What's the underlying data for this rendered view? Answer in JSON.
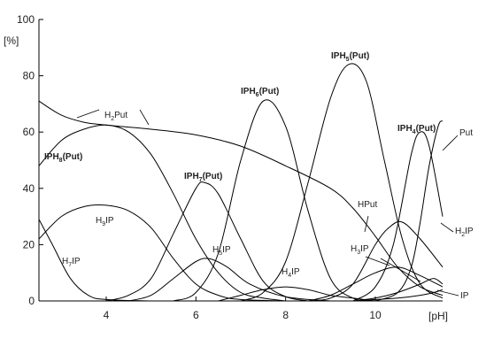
{
  "chart_data": {
    "type": "line",
    "ylabel": "[%]",
    "xlabel": "[pH]",
    "xlim": [
      2.5,
      11.5
    ],
    "ylim": [
      0,
      100
    ],
    "x_ticks": [
      4,
      6,
      8,
      10
    ],
    "y_ticks": [
      0,
      20,
      40,
      60,
      80,
      100
    ],
    "grid": false,
    "series": [
      {
        "name": "H2Put",
        "points": [
          [
            2.5,
            71
          ],
          [
            3,
            66
          ],
          [
            3.5,
            63.5
          ],
          [
            4,
            62.5
          ],
          [
            5,
            61
          ],
          [
            6,
            59
          ],
          [
            7,
            55
          ],
          [
            8,
            48
          ],
          [
            9,
            40
          ],
          [
            9.5,
            33
          ],
          [
            10,
            23
          ],
          [
            10.5,
            12
          ],
          [
            11,
            5
          ],
          [
            11.5,
            2
          ]
        ]
      },
      {
        "name": "IPH8(Put)",
        "points": [
          [
            2.5,
            48
          ],
          [
            3,
            57
          ],
          [
            3.5,
            61
          ],
          [
            4,
            62.5
          ],
          [
            4.5,
            60
          ],
          [
            5,
            52
          ],
          [
            5.5,
            38
          ],
          [
            6,
            22
          ],
          [
            6.5,
            10
          ],
          [
            7,
            3
          ],
          [
            7.5,
            1
          ],
          [
            8,
            0
          ]
        ]
      },
      {
        "name": "H9IP",
        "points": [
          [
            2.5,
            22
          ],
          [
            3,
            30
          ],
          [
            3.5,
            33.5
          ],
          [
            4,
            34
          ],
          [
            4.5,
            32
          ],
          [
            5,
            26
          ],
          [
            5.5,
            15
          ],
          [
            6,
            6
          ],
          [
            6.5,
            2
          ],
          [
            7,
            0.5
          ],
          [
            8,
            0
          ]
        ]
      },
      {
        "name": "H7IP",
        "points": [
          [
            2.5,
            29
          ],
          [
            2.8,
            20
          ],
          [
            3.2,
            8
          ],
          [
            3.6,
            2
          ],
          [
            4,
            0.5
          ],
          [
            5,
            0
          ]
        ]
      },
      {
        "name": "IPH7(Put)",
        "points": [
          [
            4,
            0
          ],
          [
            4.5,
            2
          ],
          [
            5,
            8
          ],
          [
            5.5,
            24
          ],
          [
            6,
            40
          ],
          [
            6.2,
            42
          ],
          [
            6.5,
            38
          ],
          [
            7,
            22
          ],
          [
            7.5,
            7
          ],
          [
            8,
            1.5
          ],
          [
            8.5,
            0
          ]
        ]
      },
      {
        "name": "H5IP",
        "points": [
          [
            4.5,
            0
          ],
          [
            5,
            2
          ],
          [
            5.5,
            8
          ],
          [
            6,
            14
          ],
          [
            6.3,
            15
          ],
          [
            6.7,
            12
          ],
          [
            7.2,
            6
          ],
          [
            8,
            1.5
          ],
          [
            9,
            0
          ]
        ]
      },
      {
        "name": "IPH6(Put)",
        "points": [
          [
            5.5,
            0
          ],
          [
            6,
            3
          ],
          [
            6.5,
            17
          ],
          [
            7,
            50
          ],
          [
            7.5,
            71
          ],
          [
            8,
            62
          ],
          [
            8.5,
            32
          ],
          [
            9,
            8
          ],
          [
            9.5,
            1
          ],
          [
            10,
            0
          ]
        ]
      },
      {
        "name": "H4IP",
        "points": [
          [
            6.5,
            0
          ],
          [
            7,
            2
          ],
          [
            7.5,
            4
          ],
          [
            8,
            5
          ],
          [
            8.5,
            4
          ],
          [
            9,
            2
          ],
          [
            9.5,
            1
          ],
          [
            10,
            0
          ]
        ]
      },
      {
        "name": "IPH5(Put)",
        "points": [
          [
            7,
            0
          ],
          [
            7.5,
            3
          ],
          [
            8,
            14
          ],
          [
            8.5,
            42
          ],
          [
            9,
            72
          ],
          [
            9.4,
            84
          ],
          [
            9.8,
            78
          ],
          [
            10.2,
            50
          ],
          [
            10.6,
            22
          ],
          [
            11,
            6
          ],
          [
            11.5,
            1
          ]
        ]
      },
      {
        "name": "HPut",
        "points": [
          [
            8.5,
            0
          ],
          [
            9,
            1
          ],
          [
            9.5,
            6
          ],
          [
            10,
            20
          ],
          [
            10.3,
            26
          ],
          [
            10.6,
            28
          ],
          [
            11,
            22
          ],
          [
            11.5,
            12
          ]
        ]
      },
      {
        "name": "H3IP",
        "points": [
          [
            8.5,
            0
          ],
          [
            9,
            2
          ],
          [
            9.5,
            6
          ],
          [
            10,
            10
          ],
          [
            10.5,
            12
          ],
          [
            11,
            9
          ],
          [
            11.5,
            5
          ]
        ]
      },
      {
        "name": "IPH4(Put)",
        "points": [
          [
            9.5,
            0
          ],
          [
            10,
            5
          ],
          [
            10.4,
            20
          ],
          [
            10.8,
            52
          ],
          [
            11,
            60
          ],
          [
            11.2,
            55
          ],
          [
            11.5,
            30
          ]
        ]
      },
      {
        "name": "Put",
        "points": [
          [
            10,
            0
          ],
          [
            10.5,
            3
          ],
          [
            10.8,
            12
          ],
          [
            11,
            28
          ],
          [
            11.2,
            48
          ],
          [
            11.4,
            62
          ],
          [
            11.5,
            64
          ]
        ]
      },
      {
        "name": "H2IP",
        "points": [
          [
            9.5,
            0
          ],
          [
            10,
            1
          ],
          [
            10.5,
            3
          ],
          [
            11,
            6
          ],
          [
            11.3,
            8
          ],
          [
            11.5,
            6
          ]
        ]
      },
      {
        "name": "IP",
        "points": [
          [
            9.5,
            0
          ],
          [
            10,
            0.5
          ],
          [
            10.5,
            1
          ],
          [
            11,
            2
          ],
          [
            11.3,
            3
          ],
          [
            11.5,
            4
          ]
        ]
      }
    ],
    "annotations": [
      {
        "key": "h2put",
        "base": "H",
        "sub": "2",
        "rest": "Put",
        "bold": false
      },
      {
        "key": "iph8",
        "base": "IPH",
        "sub": "8",
        "rest": "(Put)",
        "bold": true
      },
      {
        "key": "h9ip",
        "base": "H",
        "sub": "9",
        "rest": "IP",
        "bold": false
      },
      {
        "key": "h7ip",
        "base": "H",
        "sub": "7",
        "rest": "IP",
        "bold": false
      },
      {
        "key": "iph7",
        "base": "IPH",
        "sub": "7",
        "rest": "(Put)",
        "bold": true
      },
      {
        "key": "h5ip",
        "base": "H",
        "sub": "5",
        "rest": "IP",
        "bold": false
      },
      {
        "key": "iph6",
        "base": "IPH",
        "sub": "6",
        "rest": "(Put)",
        "bold": true
      },
      {
        "key": "h4ip",
        "base": "H",
        "sub": "4",
        "rest": "IP",
        "bold": false
      },
      {
        "key": "iph5",
        "base": "IPH",
        "sub": "5",
        "rest": "(Put)",
        "bold": true
      },
      {
        "key": "hput",
        "base": "HPut",
        "sub": "",
        "rest": "",
        "bold": false
      },
      {
        "key": "h3ip",
        "base": "H",
        "sub": "3",
        "rest": "IP",
        "bold": false
      },
      {
        "key": "iph4",
        "base": "IPH",
        "sub": "4",
        "rest": "(Put)",
        "bold": true
      },
      {
        "key": "put",
        "base": "Put",
        "sub": "",
        "rest": "",
        "bold": false
      },
      {
        "key": "h2ip",
        "base": "H",
        "sub": "2",
        "rest": "IP",
        "bold": false
      },
      {
        "key": "ip",
        "base": "IP",
        "sub": "",
        "rest": "",
        "bold": false
      }
    ]
  }
}
